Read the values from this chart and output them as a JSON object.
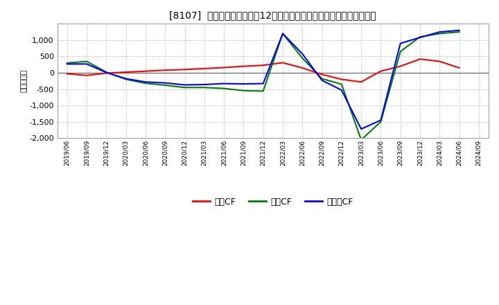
{
  "title": "[8107]  キャッシュフローの12か月移動合計の対前年同期増減額の推移",
  "ylabel": "（百万円）",
  "background_color": "#ffffff",
  "plot_bg_color": "#ffffff",
  "grid_color": "#999999",
  "ylim": [
    -2000,
    1500
  ],
  "yticks": [
    -2000,
    -1500,
    -1000,
    -500,
    0,
    500,
    1000
  ],
  "series": {
    "営業CF": {
      "color": "#ff0000",
      "values": [
        -30,
        -80,
        -10,
        20,
        50,
        80,
        100,
        130,
        160,
        200,
        230,
        310,
        150,
        -50,
        -200,
        -280,
        50,
        200,
        420,
        350,
        150
      ]
    },
    "投資CF": {
      "color": "#008000",
      "values": [
        300,
        350,
        20,
        -200,
        -320,
        -380,
        -450,
        -450,
        -480,
        -545,
        -560,
        1200,
        450,
        -180,
        -350,
        -2050,
        -1500,
        650,
        1100,
        1200,
        1250
      ]
    },
    "フリーCF": {
      "color": "#0000ff",
      "values": [
        270,
        270,
        10,
        -180,
        -280,
        -310,
        -370,
        -360,
        -330,
        -340,
        -330,
        1200,
        580,
        -230,
        -530,
        -1720,
        -1450,
        900,
        1080,
        1250,
        1300
      ]
    }
  },
  "data_xtick_labels": [
    "2019/06",
    "2019/09",
    "2019/12",
    "2020/03",
    "2020/06",
    "2020/09",
    "2020/12",
    "2021/03",
    "2021/06",
    "2021/09",
    "2021/12",
    "2022/03",
    "2022/06",
    "2022/09",
    "2022/12",
    "2023/03",
    "2023/06",
    "2023/09",
    "2023/12",
    "2024/03",
    "2024/06"
  ],
  "all_xtick_labels": [
    "2019/06",
    "2019/09",
    "2019/12",
    "2020/03",
    "2020/06",
    "2020/09",
    "2020/12",
    "2021/03",
    "2021/06",
    "2021/09",
    "2021/12",
    "2022/03",
    "2022/06",
    "2022/09",
    "2022/12",
    "2023/03",
    "2023/06",
    "2023/09",
    "2023/12",
    "2024/03",
    "2024/06",
    "2024/09"
  ],
  "legend_order": [
    "営業CF",
    "投資CF",
    "フリーCF"
  ],
  "legend_colors": [
    "#ff0000",
    "#008000",
    "#0000ff"
  ]
}
